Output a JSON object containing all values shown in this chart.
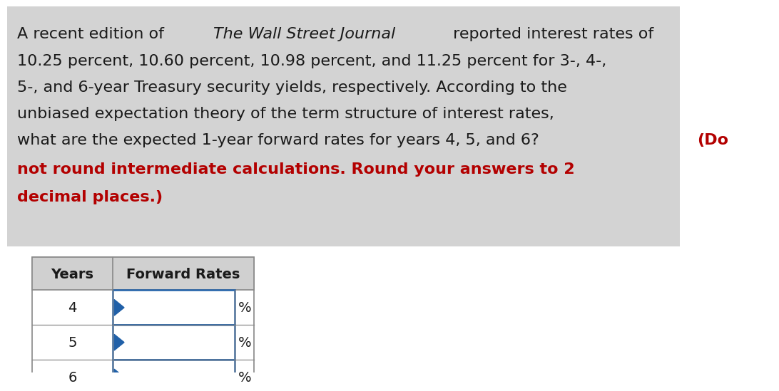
{
  "background_color": "#ffffff",
  "text_bg_color": "#d3d3d3",
  "normal_text_color": "#1a1a1a",
  "bold_red_color": "#b30000",
  "table_header_years": "Years",
  "table_header_forward": "Forward Rates",
  "table_rows": [
    "4",
    "5",
    "6"
  ],
  "table_border_color": "#888888",
  "table_input_border_color": "#2060a8",
  "table_header_bg": "#d0d0d0",
  "percent_sign": "%",
  "font_size_paragraph": 16,
  "font_size_table_header": 14,
  "font_size_table_row": 14,
  "line1_normal1": "A recent edition of ",
  "line1_italic": "The Wall Street Journal",
  "line1_normal2": " reported interest rates of",
  "line2": "10.25 percent, 10.60 percent, 10.98 percent, and 11.25 percent for 3-, 4-,",
  "line3": "5-, and 6-year Treasury security yields, respectively. According to the",
  "line4": "unbiased expectation theory of the term structure of interest rates,",
  "line5_normal": "what are the expected 1-year forward rates for years 4, 5, and 6? ",
  "line5_bold_red": "(Do",
  "line6_bold_red": "not round intermediate calculations. Round your answers to 2",
  "line7_bold_red": "decimal places.)"
}
